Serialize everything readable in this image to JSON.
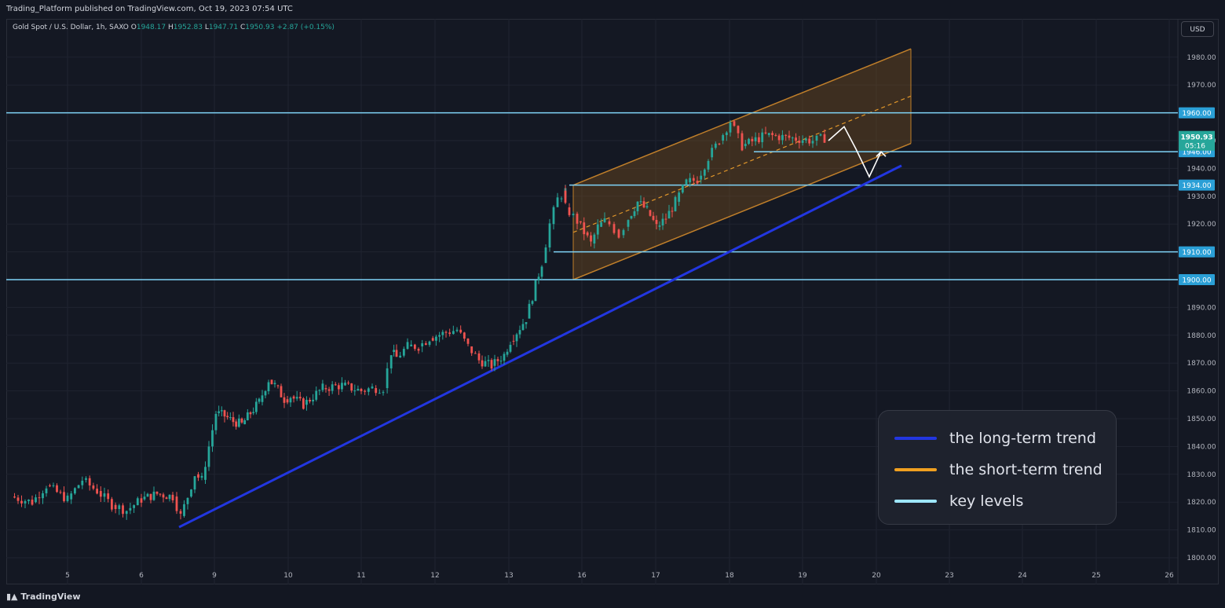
{
  "header": {
    "published": "Trading_Platform published on TradingView.com, Oct 19, 2023 07:54 UTC"
  },
  "symbol": {
    "name": "Gold Spot / U.S. Dollar, 1h, SAXO",
    "o_label": "O",
    "o_value": "1948.17",
    "h_label": "H",
    "h_value": "1952.83",
    "l_label": "L",
    "l_value": "1947.71",
    "c_label": "C",
    "c_value": "1950.93",
    "change": "+2.87 (+0.15%)"
  },
  "currency": "USD",
  "footer": {
    "logo": "TradingView"
  },
  "colors": {
    "up": "#26a69a",
    "down": "#ef5350",
    "long_trend": "#2236e0",
    "short_trend": "#f0a020",
    "key_levels": "#7fd3f7",
    "channel_fill": "#8a5a1c"
  },
  "legend": [
    {
      "label": "the long-term trend",
      "color": "#2236e0"
    },
    {
      "label": "the short-term trend",
      "color": "#f0a020"
    },
    {
      "label": "key levels",
      "color": "#9ee6ff"
    }
  ],
  "chart_data": {
    "type": "candlestick",
    "title": "",
    "xlabel": "",
    "ylabel": "",
    "ylim": [
      1795,
      1987
    ],
    "x_ticks": [
      "5",
      "6",
      "9",
      "10",
      "11",
      "12",
      "13",
      "16",
      "17",
      "18",
      "19",
      "20",
      "23",
      "24",
      "25",
      "26"
    ],
    "y_ticks": [
      1800,
      1810,
      1820,
      1830,
      1840,
      1850,
      1860,
      1870,
      1880,
      1890,
      1900,
      1910,
      1920,
      1930,
      1940,
      1950,
      1960,
      1970,
      1980
    ],
    "key_levels": [
      1960,
      1946,
      1934,
      1910,
      1900
    ],
    "last_price": {
      "value": 1950.93,
      "label": "1950.93",
      "countdown": "05:16"
    },
    "long_term_trend": {
      "from": [
        "6",
        1811
      ],
      "to": [
        "20",
        1941
      ]
    },
    "short_term_channel": {
      "start": "15.8",
      "end": "22.5",
      "upper": [
        1934,
        1983
      ],
      "mid": [
        1917,
        1966
      ],
      "lower": [
        1900,
        1949
      ]
    },
    "price_path": [
      [
        "4.2",
        1822
      ],
      [
        "4.5",
        1820
      ],
      [
        "4.7",
        1826
      ],
      [
        "5.0",
        1821
      ],
      [
        "5.2",
        1828
      ],
      [
        "5.4",
        1824
      ],
      [
        "5.6",
        1819
      ],
      [
        "5.8",
        1817
      ],
      [
        "6.0",
        1821
      ],
      [
        "6.2",
        1823
      ],
      [
        "6.4",
        1822
      ],
      [
        "6.5",
        1815
      ],
      [
        "6.6",
        1822
      ],
      [
        "6.7",
        1830
      ],
      [
        "6.8",
        1828
      ],
      [
        "6.9",
        1840
      ],
      [
        "7.0",
        1852
      ],
      [
        "7.2",
        1851
      ],
      [
        "7.4",
        1849
      ],
      [
        "7.6",
        1848
      ],
      [
        "7.8",
        1852
      ],
      [
        "8.0",
        1856
      ],
      [
        "8.3",
        1864
      ],
      [
        "8.5",
        1862
      ],
      [
        "8.8",
        1857
      ],
      [
        "9.0",
        1858
      ],
      [
        "9.2",
        1855
      ],
      [
        "9.5",
        1861
      ],
      [
        "9.8",
        1862
      ],
      [
        "10.1",
        1860
      ],
      [
        "10.3",
        1861
      ],
      [
        "10.5",
        1861
      ],
      [
        "10.8",
        1874
      ],
      [
        "11.0",
        1872
      ],
      [
        "11.2",
        1876
      ],
      [
        "11.4",
        1876
      ],
      [
        "11.6",
        1879
      ],
      [
        "11.9",
        1881
      ],
      [
        "12.1",
        1882
      ],
      [
        "12.3",
        1876
      ],
      [
        "12.5",
        1871
      ],
      [
        "12.7",
        1869
      ],
      [
        "12.9",
        1873
      ],
      [
        "13.0",
        1878
      ],
      [
        "13.2",
        1886
      ],
      [
        "13.4",
        1906
      ],
      [
        "13.6",
        1920
      ],
      [
        "13.8",
        1929
      ],
      [
        "14.0",
        1932
      ],
      [
        "14.0b",
        1926
      ],
      [
        "14.2",
        1921
      ],
      [
        "14.4",
        1917
      ],
      [
        "14.6",
        1913
      ],
      [
        "14.8",
        1919
      ],
      [
        "15.0",
        1921
      ],
      [
        "15.2",
        1920
      ],
      [
        "15.4",
        1918
      ],
      [
        "15.6",
        1916
      ],
      [
        "15.8",
        1919
      ],
      [
        "16.0",
        1922
      ],
      [
        "16.2",
        1928
      ],
      [
        "16.4",
        1925
      ],
      [
        "16.6",
        1919
      ],
      [
        "16.8",
        1922
      ],
      [
        "17.0",
        1928
      ],
      [
        "17.2",
        1935
      ],
      [
        "17.4",
        1936
      ],
      [
        "17.6",
        1944
      ],
      [
        "17.8",
        1950
      ],
      [
        "18.0",
        1957
      ],
      [
        "18.2",
        1948
      ],
      [
        "18.4",
        1952
      ],
      [
        "18.6",
        1951
      ],
      [
        "18.8",
        1950
      ],
      [
        "18.9",
        1950.93
      ]
    ],
    "projection": [
      [
        "19.0",
        1950
      ],
      [
        "19.1",
        1955
      ],
      [
        "19.3",
        1947
      ],
      [
        "19.7",
        1937
      ],
      [
        "19.9",
        1946
      ]
    ]
  }
}
